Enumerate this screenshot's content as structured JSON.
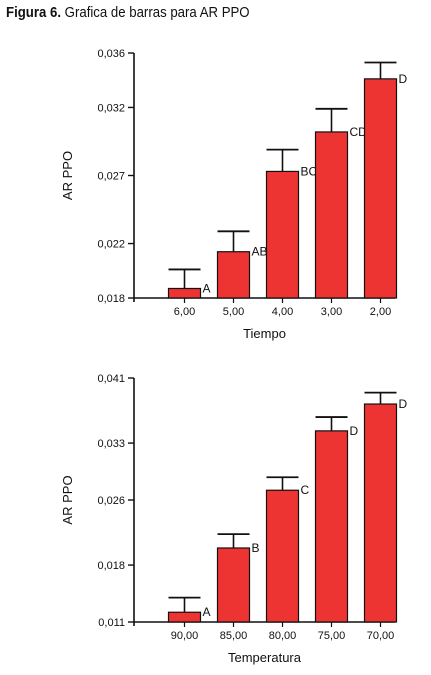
{
  "caption": {
    "label": "Figura 6.",
    "text": "Grafica de barras para AR PPO"
  },
  "colors": {
    "bar": "#ee3333",
    "axis": "#111111"
  },
  "chart_data": [
    {
      "type": "bar",
      "title": "",
      "xlabel": "Tiempo",
      "ylabel": "AR PPO",
      "ylim": [
        0.018,
        0.036
      ],
      "yticks": [
        0.018,
        0.022,
        0.027,
        0.032,
        0.036
      ],
      "ytick_labels": [
        "0,018",
        "0,022",
        "0,027",
        "0,032",
        "0,036"
      ],
      "categories": [
        "6,00",
        "5,00",
        "4,00",
        "3,00",
        "2,00"
      ],
      "values": [
        0.0187,
        0.0214,
        0.0273,
        0.0302,
        0.0341
      ],
      "error_upper": [
        0.0201,
        0.0229,
        0.0289,
        0.0319,
        0.0353
      ],
      "letters": [
        "A",
        "AB",
        "BC",
        "CD",
        "D"
      ],
      "grid": false,
      "legend": "none"
    },
    {
      "type": "bar",
      "title": "",
      "xlabel": "Temperatura",
      "ylabel": "AR PPO",
      "ylim": [
        0.011,
        0.041
      ],
      "yticks": [
        0.011,
        0.018,
        0.026,
        0.033,
        0.041
      ],
      "ytick_labels": [
        "0,011",
        "0,018",
        "0,026",
        "0,033",
        "0,041"
      ],
      "categories": [
        "90,00",
        "85,00",
        "80,00",
        "75,00",
        "70,00"
      ],
      "values": [
        0.0122,
        0.0201,
        0.0272,
        0.0345,
        0.0378
      ],
      "error_upper": [
        0.014,
        0.0218,
        0.0288,
        0.0362,
        0.0392
      ],
      "letters": [
        "A",
        "B",
        "C",
        "D",
        "D"
      ],
      "grid": false,
      "legend": "none"
    }
  ]
}
